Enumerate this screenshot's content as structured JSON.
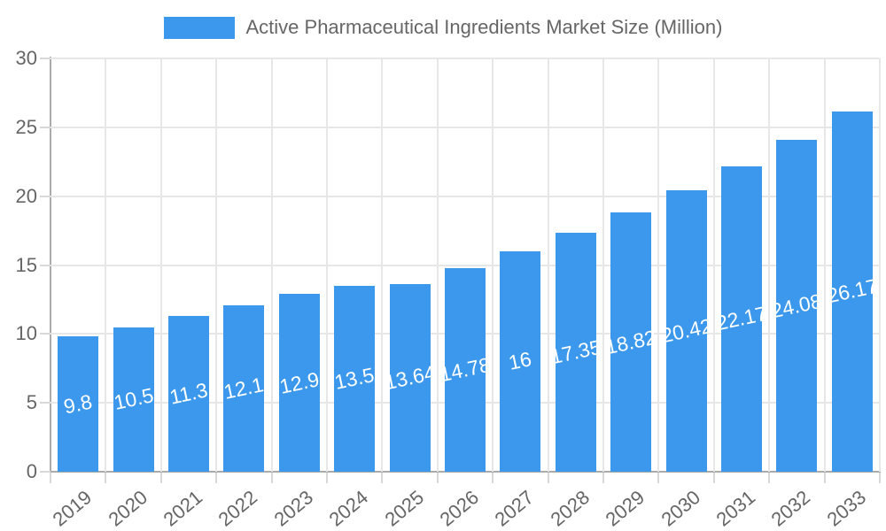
{
  "legend": {
    "label": "Active Pharmaceutical Ingredients Market Size (Million)"
  },
  "chart_data": {
    "type": "bar",
    "title": "Active Pharmaceutical Ingredients Market Size (Million)",
    "xlabel": "",
    "ylabel": "",
    "categories": [
      "2019",
      "2020",
      "2021",
      "2022",
      "2023",
      "2024",
      "2025",
      "2026",
      "2027",
      "2028",
      "2029",
      "2030",
      "2031",
      "2032",
      "2033"
    ],
    "values": [
      9.8,
      10.5,
      11.3,
      12.1,
      12.9,
      13.5,
      13.64,
      14.78,
      16,
      17.35,
      18.82,
      20.42,
      22.17,
      24.08,
      26.17
    ],
    "value_labels": [
      "9.8",
      "10.5",
      "11.3",
      "12.1",
      "12.9",
      "13.5",
      "13.64",
      "14.78",
      "16",
      "17.35",
      "18.82",
      "20.42",
      "22.17",
      "24.08",
      "26.17"
    ],
    "ylim": [
      0,
      30
    ],
    "yticks": [
      0,
      5,
      10,
      15,
      20,
      25,
      30
    ],
    "grid": true,
    "legend_position": "top",
    "colors": {
      "bar": "#3B98EC",
      "grid": "#E7E7E7",
      "axis": "#ABABAB",
      "tick_mark": "#D8D8D8",
      "tick_text": "#666666",
      "value_label": "#FFFFFF"
    }
  }
}
